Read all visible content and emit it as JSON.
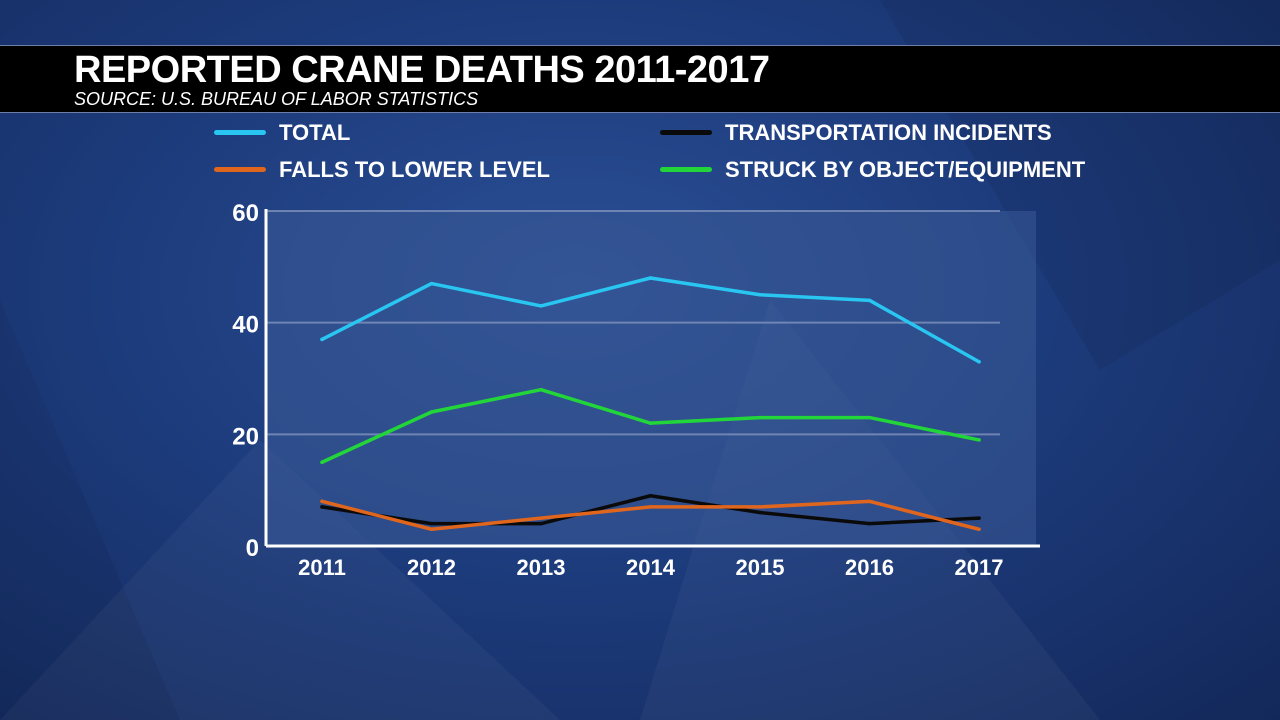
{
  "header": {
    "title": "REPORTED CRANE DEATHS 2011-2017",
    "subtitle": "SOURCE: U.S. BUREAU OF LABOR STATISTICS"
  },
  "colors": {
    "total": "#29c6f2",
    "transportation": "#0a0a0a",
    "falls": "#e0661e",
    "struck": "#22d63a",
    "axis": "#ffffff",
    "grid": "#8a9cc4",
    "plot_bg": "#3a5a96"
  },
  "chart_data": {
    "type": "line",
    "title": "REPORTED CRANE DEATHS 2011-2017",
    "subtitle": "SOURCE: U.S. BUREAU OF LABOR STATISTICS",
    "x": [
      "2011",
      "2012",
      "2013",
      "2014",
      "2015",
      "2016",
      "2017"
    ],
    "yticks": [
      0,
      20,
      40,
      60
    ],
    "ylim": [
      0,
      60
    ],
    "grid": true,
    "legend_position": "top",
    "series": [
      {
        "key": "total",
        "name": "TOTAL",
        "values": [
          37,
          47,
          43,
          48,
          45,
          44,
          33
        ]
      },
      {
        "key": "transportation",
        "name": "TRANSPORTATION INCIDENTS",
        "values": [
          7,
          4,
          4,
          9,
          6,
          4,
          5
        ]
      },
      {
        "key": "falls",
        "name": "FALLS TO LOWER LEVEL",
        "values": [
          8,
          3,
          5,
          7,
          7,
          8,
          3
        ]
      },
      {
        "key": "struck",
        "name": "STRUCK BY OBJECT/EQUIPMENT",
        "values": [
          15,
          24,
          28,
          22,
          23,
          23,
          19
        ]
      }
    ]
  }
}
